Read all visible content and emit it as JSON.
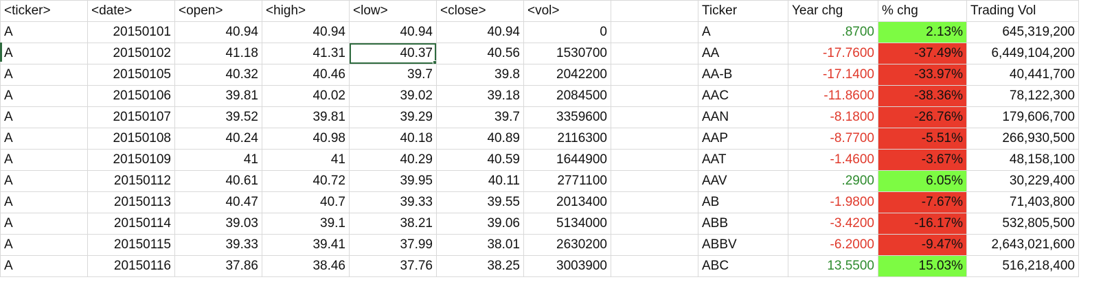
{
  "sheet": {
    "headers": [
      "<ticker>",
      "<date>",
      "<open>",
      "<high>",
      "<low>",
      "<close>",
      "<vol>",
      "",
      "Ticker",
      "Year chg",
      "% chg",
      "Trading Vol"
    ],
    "rows": [
      [
        "A",
        "20150101",
        "40.94",
        "40.94",
        "40.94",
        "40.94",
        "0",
        "",
        "A",
        ".8700",
        "2.13%",
        "645,319,200"
      ],
      [
        "A",
        "20150102",
        "41.18",
        "41.31",
        "40.37",
        "40.56",
        "1530700",
        "",
        "AA",
        "-17.7600",
        "-37.49%",
        "6,449,104,200"
      ],
      [
        "A",
        "20150105",
        "40.32",
        "40.46",
        "39.7",
        "39.8",
        "2042200",
        "",
        "AA-B",
        "-17.1400",
        "-33.97%",
        "40,441,700"
      ],
      [
        "A",
        "20150106",
        "39.81",
        "40.02",
        "39.02",
        "39.18",
        "2084500",
        "",
        "AAC",
        "-11.8600",
        "-38.36%",
        "78,122,300"
      ],
      [
        "A",
        "20150107",
        "39.52",
        "39.81",
        "39.29",
        "39.7",
        "3359600",
        "",
        "AAN",
        "-8.1800",
        "-26.76%",
        "179,606,700"
      ],
      [
        "A",
        "20150108",
        "40.24",
        "40.98",
        "40.18",
        "40.89",
        "2116300",
        "",
        "AAP",
        "-8.7700",
        "-5.51%",
        "266,930,500"
      ],
      [
        "A",
        "20150109",
        "41",
        "41",
        "40.29",
        "40.59",
        "1644900",
        "",
        "AAT",
        "-1.4600",
        "-3.67%",
        "48,158,100"
      ],
      [
        "A",
        "20150112",
        "40.61",
        "40.72",
        "39.95",
        "40.11",
        "2771100",
        "",
        "AAV",
        ".2900",
        "6.05%",
        "30,229,400"
      ],
      [
        "A",
        "20150113",
        "40.47",
        "40.7",
        "39.33",
        "39.55",
        "2013400",
        "",
        "AB",
        "-1.9800",
        "-7.67%",
        "71,403,800"
      ],
      [
        "A",
        "20150114",
        "39.03",
        "39.1",
        "38.21",
        "39.06",
        "5134000",
        "",
        "ABB",
        "-3.4200",
        "-16.17%",
        "532,805,500"
      ],
      [
        "A",
        "20150115",
        "39.33",
        "39.41",
        "37.99",
        "38.01",
        "2630200",
        "",
        "ABBV",
        "-6.2000",
        "-9.47%",
        "2,643,021,600"
      ],
      [
        "A",
        "20150116",
        "37.86",
        "38.46",
        "37.76",
        "38.25",
        "3003900",
        "",
        "ABC",
        "13.5500",
        "15.03%",
        "516,218,400"
      ]
    ]
  },
  "colors": {
    "positive_text": "#2e8b2e",
    "negative_text": "#e03a2c",
    "positive_fill": "#7dfb43",
    "negative_fill": "#e93a2b",
    "selection": "#2f6b3f",
    "gridline": "#d9d9d9"
  }
}
